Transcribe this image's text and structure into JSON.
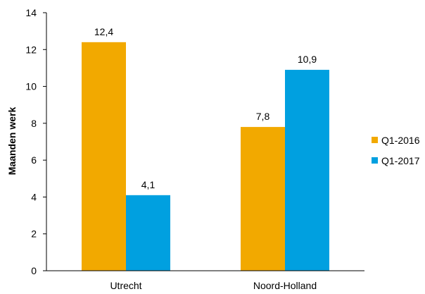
{
  "chart_data": {
    "type": "bar",
    "categories": [
      "Utrecht",
      "Noord-Holland"
    ],
    "series": [
      {
        "name": "Q1-2016",
        "values": [
          12.4,
          7.8
        ],
        "labels": [
          "12,4",
          "7,8"
        ],
        "color": "#F2A900"
      },
      {
        "name": "Q1-2017",
        "values": [
          4.1,
          10.9
        ],
        "labels": [
          "4,1",
          "10,9"
        ],
        "color": "#00A0E0"
      }
    ],
    "ylabel": "Maanden werk",
    "xlabel": "",
    "ylim": [
      0,
      14
    ],
    "yticks": [
      0,
      2,
      4,
      6,
      8,
      10,
      12,
      14
    ],
    "grid": false,
    "legend_position": "right"
  }
}
